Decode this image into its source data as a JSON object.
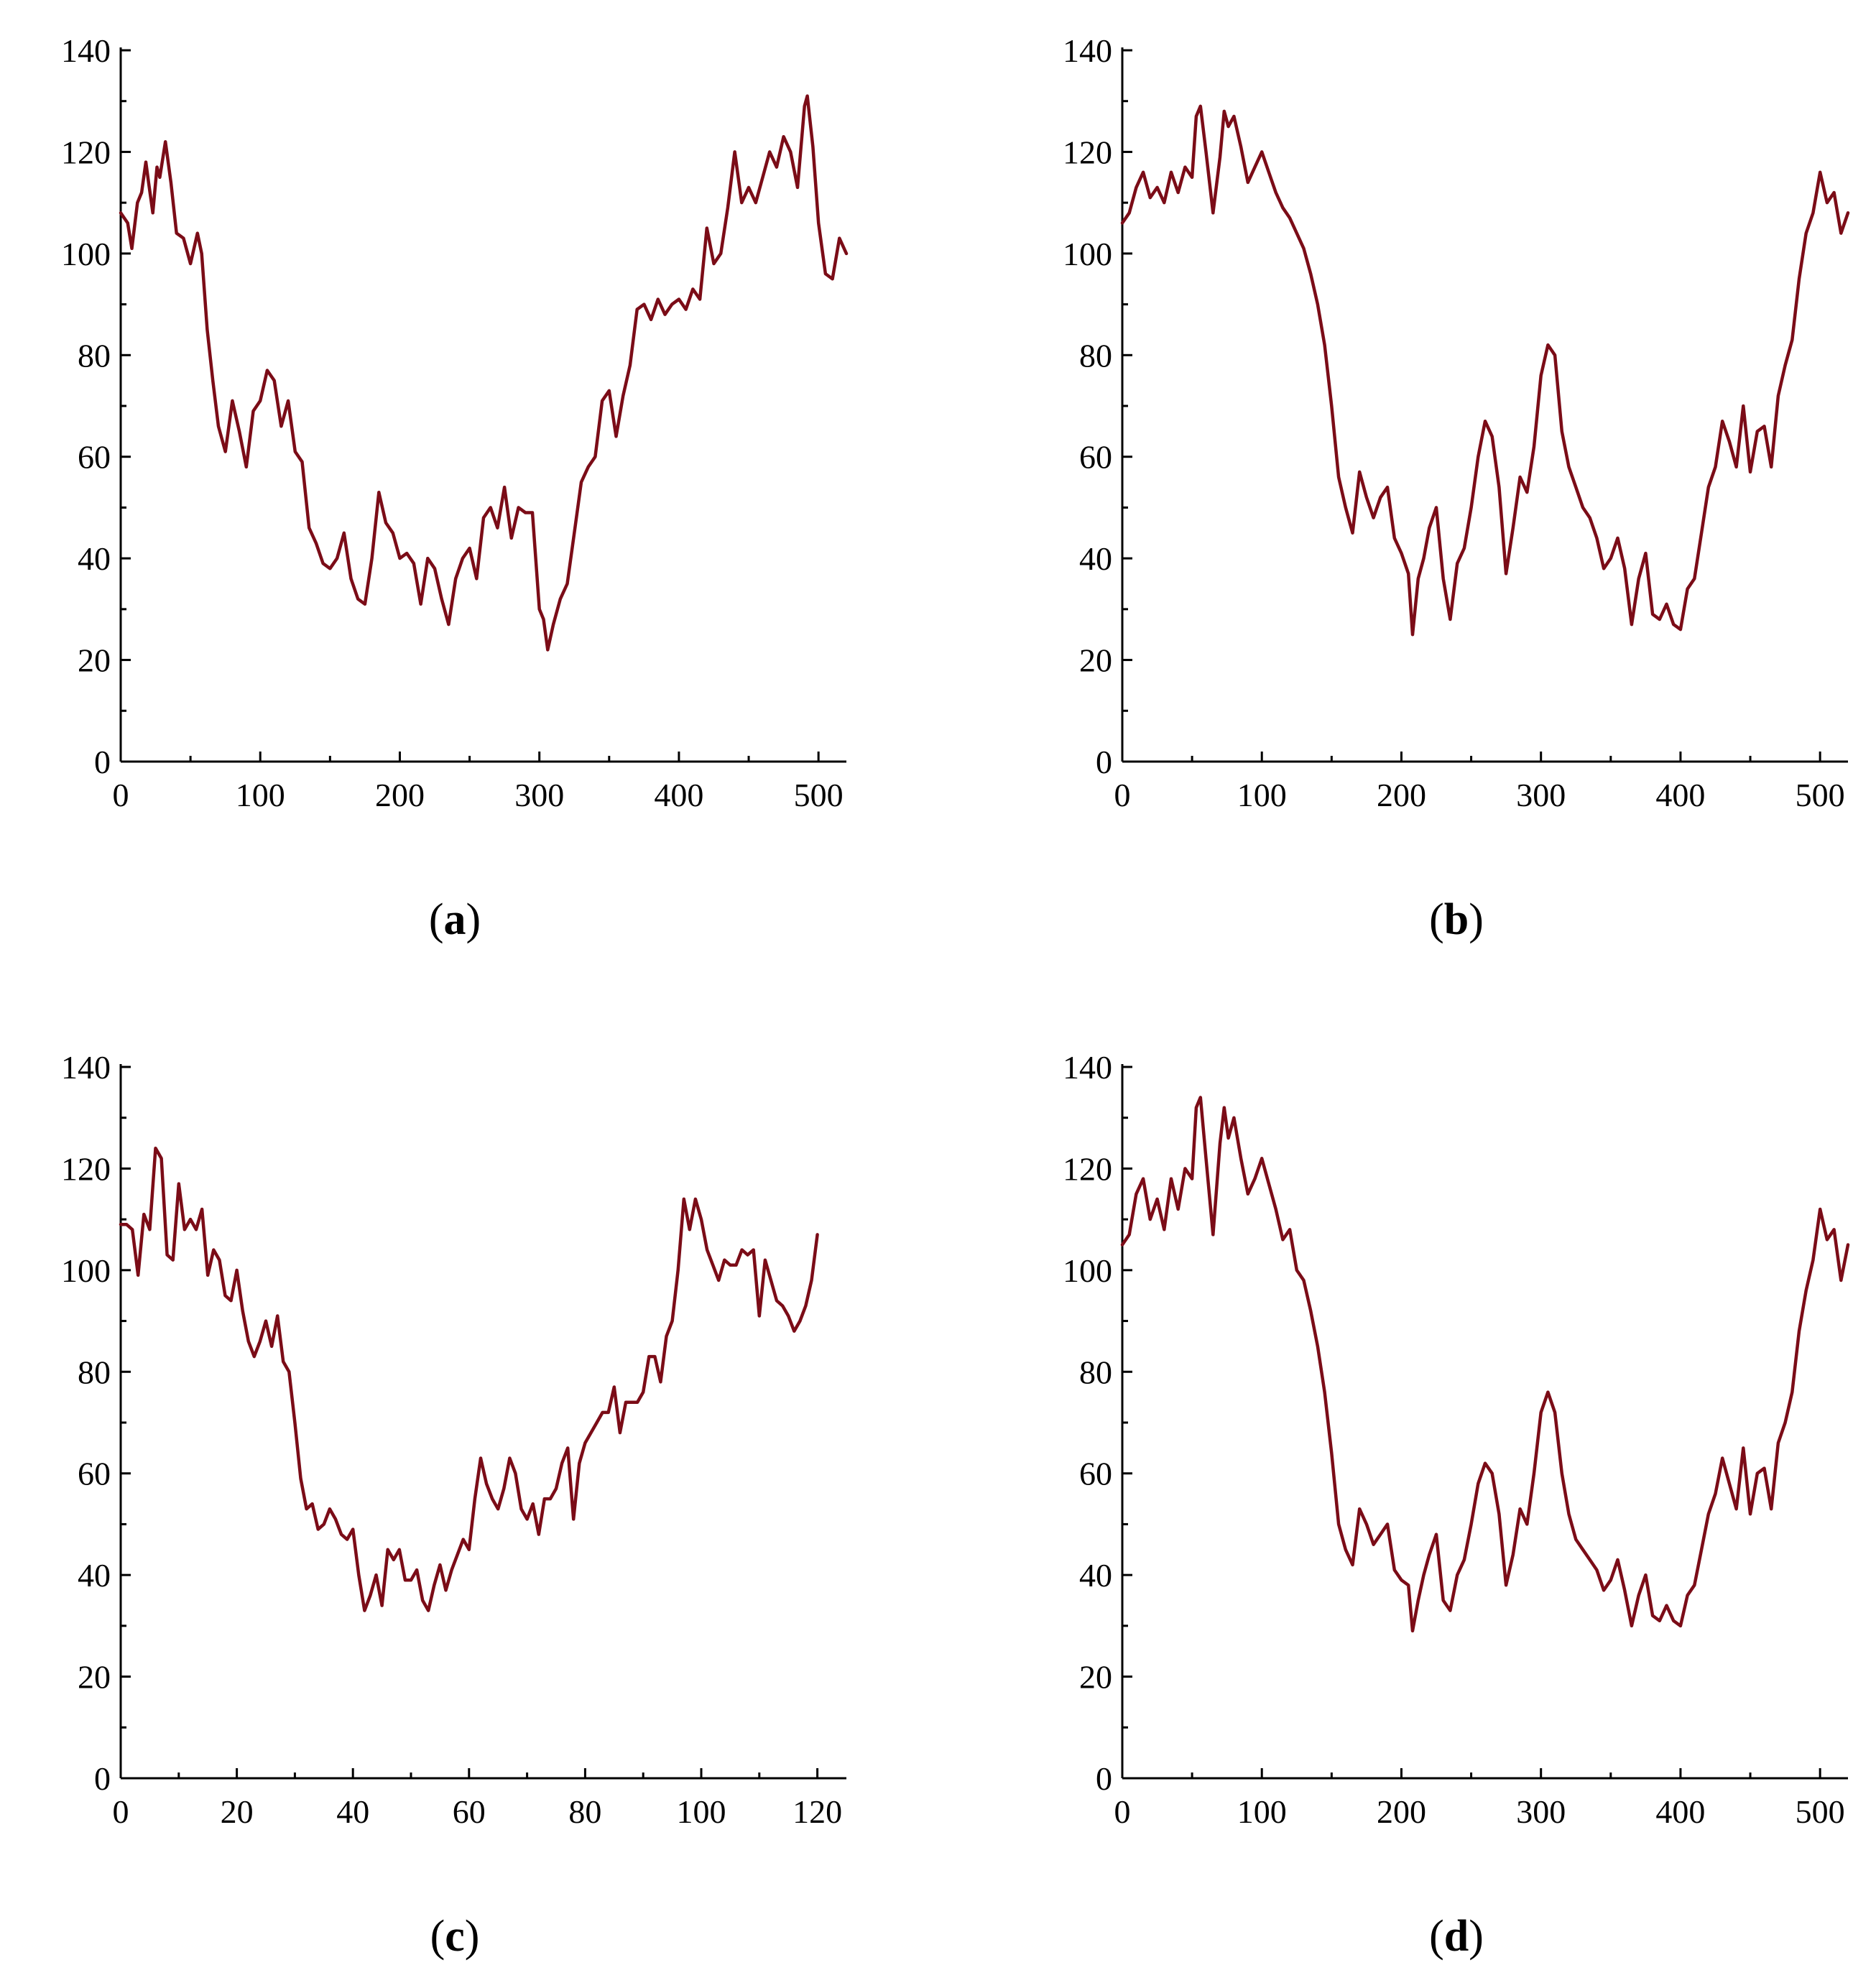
{
  "colors": {
    "series": "#7b0c17",
    "axis": "#000000"
  },
  "chart_data": [
    {
      "id": "a",
      "type": "line",
      "panel_label": "a",
      "xlim": [
        0,
        520
      ],
      "ylim": [
        0,
        140
      ],
      "x_ticks": [
        0,
        100,
        200,
        300,
        400,
        500
      ],
      "y_ticks": [
        0,
        20,
        40,
        60,
        80,
        100,
        120,
        140
      ],
      "x_tick_labels": [
        "0",
        "100",
        "200",
        "300",
        "400",
        "500"
      ],
      "y_tick_labels": [
        "0",
        "20",
        "40",
        "60",
        "80",
        "100",
        "120",
        "140"
      ],
      "series": [
        {
          "x": [
            0,
            5,
            8,
            12,
            15,
            18,
            20,
            23,
            26,
            28,
            32,
            36,
            40,
            45,
            50,
            55,
            58,
            62,
            66,
            70,
            75,
            80,
            85,
            90,
            95,
            100,
            105,
            110,
            115,
            120,
            125,
            130,
            135,
            140,
            145,
            150,
            155,
            160,
            165,
            170,
            175,
            180,
            185,
            190,
            195,
            200,
            205,
            210,
            215,
            220,
            225,
            230,
            235,
            240,
            245,
            250,
            255,
            260,
            265,
            270,
            275,
            280,
            285,
            290,
            295,
            300,
            303,
            306,
            310,
            315,
            320,
            325,
            330,
            335,
            340,
            345,
            350,
            355,
            360,
            365,
            370,
            375,
            380,
            385,
            390,
            395,
            400,
            405,
            410,
            415,
            420,
            425,
            430,
            435,
            440,
            445,
            450,
            455,
            460,
            465,
            470,
            475,
            480,
            485,
            490,
            492,
            496,
            500,
            505,
            510,
            515,
            520
          ],
          "y": [
            108,
            106,
            101,
            110,
            112,
            118,
            114,
            108,
            117,
            115,
            122,
            114,
            104,
            103,
            98,
            104,
            100,
            85,
            75,
            66,
            61,
            71,
            65,
            58,
            69,
            71,
            77,
            75,
            66,
            71,
            61,
            59,
            46,
            43,
            39,
            38,
            40,
            45,
            36,
            32,
            31,
            40,
            53,
            47,
            45,
            40,
            41,
            39,
            31,
            40,
            38,
            32,
            27,
            36,
            40,
            42,
            36,
            48,
            50,
            46,
            54,
            44,
            50,
            49,
            49,
            30,
            28,
            22,
            27,
            32,
            35,
            45,
            55,
            58,
            60,
            71,
            73,
            64,
            72,
            78,
            89,
            90,
            87,
            91,
            88,
            90,
            91,
            89,
            93,
            91,
            105,
            98,
            100,
            109,
            120,
            110,
            113,
            110,
            115,
            120,
            117,
            123,
            120,
            113,
            129,
            131,
            121,
            106,
            96,
            95,
            103,
            100
          ]
        }
      ]
    },
    {
      "id": "b",
      "type": "line",
      "panel_label": "b",
      "xlim": [
        0,
        520
      ],
      "ylim": [
        0,
        140
      ],
      "x_ticks": [
        0,
        100,
        200,
        300,
        400,
        500
      ],
      "y_ticks": [
        0,
        20,
        40,
        60,
        80,
        100,
        120,
        140
      ],
      "x_tick_labels": [
        "0",
        "100",
        "200",
        "300",
        "400",
        "500"
      ],
      "y_tick_labels": [
        "0",
        "20",
        "40",
        "60",
        "80",
        "100",
        "120",
        "140"
      ],
      "series": [
        {
          "x": [
            0,
            5,
            10,
            15,
            20,
            25,
            30,
            35,
            40,
            45,
            50,
            53,
            56,
            60,
            65,
            70,
            73,
            76,
            80,
            85,
            90,
            95,
            100,
            105,
            110,
            115,
            120,
            125,
            130,
            135,
            140,
            145,
            150,
            155,
            160,
            165,
            170,
            175,
            180,
            185,
            190,
            195,
            200,
            205,
            208,
            212,
            216,
            220,
            225,
            230,
            235,
            240,
            245,
            250,
            255,
            260,
            265,
            270,
            275,
            280,
            285,
            290,
            295,
            300,
            305,
            310,
            315,
            320,
            325,
            330,
            335,
            340,
            345,
            350,
            355,
            360,
            365,
            370,
            375,
            380,
            385,
            390,
            395,
            400,
            405,
            410,
            415,
            420,
            425,
            430,
            435,
            440,
            445,
            450,
            455,
            460,
            465,
            470,
            475,
            480,
            485,
            490,
            495,
            500,
            505,
            510,
            515,
            520
          ],
          "y": [
            106,
            108,
            113,
            116,
            111,
            113,
            110,
            116,
            112,
            117,
            115,
            127,
            129,
            120,
            108,
            119,
            128,
            125,
            127,
            121,
            114,
            117,
            120,
            116,
            112,
            109,
            107,
            104,
            101,
            96,
            90,
            82,
            70,
            56,
            50,
            45,
            57,
            52,
            48,
            52,
            54,
            44,
            41,
            37,
            25,
            36,
            40,
            46,
            50,
            36,
            28,
            39,
            42,
            50,
            60,
            67,
            64,
            54,
            37,
            46,
            56,
            53,
            62,
            76,
            82,
            80,
            65,
            58,
            54,
            50,
            48,
            44,
            38,
            40,
            44,
            38,
            27,
            36,
            41,
            29,
            28,
            31,
            27,
            26,
            34,
            36,
            45,
            54,
            58,
            67,
            63,
            58,
            70,
            57,
            65,
            66,
            58,
            72,
            78,
            83,
            95,
            104,
            108,
            116,
            110,
            112,
            104,
            108
          ]
        }
      ]
    },
    {
      "id": "c",
      "type": "line",
      "panel_label": "c",
      "xlim": [
        0,
        125
      ],
      "ylim": [
        0,
        140
      ],
      "x_ticks": [
        0,
        20,
        40,
        60,
        80,
        100,
        120
      ],
      "y_ticks": [
        0,
        20,
        40,
        60,
        80,
        100,
        120,
        140
      ],
      "x_tick_labels": [
        "0",
        "20",
        "40",
        "60",
        "80",
        "100",
        "120"
      ],
      "y_tick_labels": [
        "0",
        "20",
        "40",
        "60",
        "80",
        "100",
        "120",
        "140"
      ],
      "series": [
        {
          "x": [
            0,
            1,
            2,
            3,
            4,
            5,
            6,
            7,
            8,
            9,
            10,
            11,
            12,
            13,
            14,
            15,
            16,
            17,
            18,
            19,
            20,
            21,
            22,
            23,
            24,
            25,
            26,
            27,
            28,
            29,
            30,
            31,
            32,
            33,
            34,
            35,
            36,
            37,
            38,
            39,
            40,
            41,
            42,
            43,
            44,
            45,
            46,
            47,
            48,
            49,
            50,
            51,
            52,
            53,
            54,
            55,
            56,
            57,
            58,
            59,
            60,
            61,
            62,
            63,
            64,
            65,
            66,
            67,
            68,
            69,
            70,
            71,
            72,
            73,
            74,
            75,
            76,
            77,
            78,
            79,
            80,
            81,
            82,
            83,
            84,
            85,
            86,
            87,
            88,
            89,
            90,
            91,
            92,
            93,
            94,
            95,
            96,
            97,
            98,
            99,
            100,
            101,
            102,
            103,
            104,
            105,
            106,
            107,
            108,
            109,
            110,
            111,
            112,
            113,
            114,
            115,
            116,
            117,
            118,
            119,
            120
          ],
          "y": [
            109,
            109,
            108,
            99,
            111,
            108,
            124,
            122,
            103,
            102,
            117,
            108,
            110,
            108,
            112,
            99,
            104,
            102,
            95,
            94,
            100,
            92,
            86,
            83,
            86,
            90,
            85,
            91,
            82,
            80,
            70,
            59,
            53,
            54,
            49,
            50,
            53,
            51,
            48,
            47,
            49,
            40,
            33,
            36,
            40,
            34,
            45,
            43,
            45,
            39,
            39,
            41,
            35,
            33,
            38,
            42,
            37,
            41,
            44,
            47,
            45,
            55,
            63,
            58,
            55,
            53,
            57,
            63,
            60,
            53,
            51,
            54,
            48,
            55,
            55,
            57,
            62,
            65,
            51,
            62,
            66,
            68,
            70,
            72,
            72,
            77,
            68,
            74,
            74,
            74,
            76,
            83,
            83,
            78,
            87,
            90,
            100,
            114,
            108,
            114,
            110,
            104,
            101,
            98,
            102,
            101,
            101,
            104,
            103,
            104,
            91,
            102,
            98,
            94,
            93,
            91,
            88,
            90,
            93,
            98,
            107
          ]
        }
      ]
    },
    {
      "id": "d",
      "type": "line",
      "panel_label": "d",
      "xlim": [
        0,
        520
      ],
      "ylim": [
        0,
        140
      ],
      "x_ticks": [
        0,
        100,
        200,
        300,
        400,
        500
      ],
      "y_ticks": [
        0,
        20,
        40,
        60,
        80,
        100,
        120,
        140
      ],
      "x_tick_labels": [
        "0",
        "100",
        "200",
        "300",
        "400",
        "500"
      ],
      "y_tick_labels": [
        "0",
        "20",
        "40",
        "60",
        "80",
        "100",
        "120",
        "140"
      ],
      "series": [
        {
          "x": [
            0,
            5,
            10,
            15,
            20,
            25,
            30,
            35,
            40,
            45,
            50,
            53,
            56,
            60,
            65,
            70,
            73,
            76,
            80,
            85,
            90,
            95,
            100,
            105,
            110,
            115,
            120,
            125,
            130,
            135,
            140,
            145,
            150,
            155,
            160,
            165,
            170,
            175,
            180,
            185,
            190,
            195,
            200,
            205,
            208,
            212,
            216,
            220,
            225,
            230,
            235,
            240,
            245,
            250,
            255,
            260,
            265,
            270,
            275,
            280,
            285,
            290,
            295,
            300,
            305,
            310,
            315,
            320,
            325,
            330,
            335,
            340,
            345,
            350,
            355,
            360,
            365,
            370,
            375,
            380,
            385,
            390,
            395,
            400,
            405,
            410,
            415,
            420,
            425,
            430,
            435,
            440,
            445,
            450,
            455,
            460,
            465,
            470,
            475,
            480,
            485,
            490,
            495,
            500,
            505,
            510,
            515,
            520
          ],
          "y": [
            105,
            107,
            115,
            118,
            110,
            114,
            108,
            118,
            112,
            120,
            118,
            132,
            134,
            122,
            107,
            125,
            132,
            126,
            130,
            122,
            115,
            118,
            122,
            117,
            112,
            106,
            108,
            100,
            98,
            92,
            85,
            76,
            64,
            50,
            45,
            42,
            53,
            50,
            46,
            48,
            50,
            41,
            39,
            38,
            29,
            35,
            40,
            44,
            48,
            35,
            33,
            40,
            43,
            50,
            58,
            62,
            60,
            52,
            38,
            44,
            53,
            50,
            60,
            72,
            76,
            72,
            60,
            52,
            47,
            45,
            43,
            41,
            37,
            39,
            43,
            37,
            30,
            36,
            40,
            32,
            31,
            34,
            31,
            30,
            36,
            38,
            45,
            52,
            56,
            63,
            58,
            53,
            65,
            52,
            60,
            61,
            53,
            66,
            70,
            76,
            88,
            96,
            102,
            112,
            106,
            108,
            98,
            105
          ]
        }
      ]
    }
  ]
}
